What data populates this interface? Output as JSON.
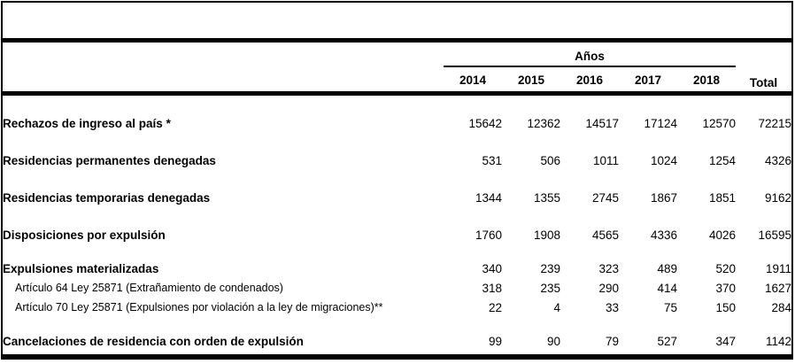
{
  "document": {
    "caption": "",
    "colors": {
      "border": "#000000",
      "text": "#000000",
      "background": "#ffffff"
    },
    "table": {
      "years_group_label": "Años",
      "columns": [
        "2014",
        "2015",
        "2016",
        "2017",
        "2018"
      ],
      "total_label": "Total",
      "rows": [
        {
          "label": "Rechazos de ingreso al país *",
          "level": 0,
          "values": [
            "15642",
            "12362",
            "14517",
            "17124",
            "12570"
          ],
          "total": "72215"
        },
        {
          "label": "Residencias permanentes denegadas",
          "level": 0,
          "values": [
            "531",
            "506",
            "1011",
            "1024",
            "1254"
          ],
          "total": "4326"
        },
        {
          "label": "Residencias temporarias denegadas",
          "level": 0,
          "values": [
            "1344",
            "1355",
            "2745",
            "1867",
            "1851"
          ],
          "total": "9162"
        },
        {
          "label": "Disposiciones por expulsión",
          "level": 0,
          "values": [
            "1760",
            "1908",
            "4565",
            "4336",
            "4026"
          ],
          "total": "16595"
        },
        {
          "label": "Expulsiones materializadas",
          "level": 0,
          "values": [
            "340",
            "239",
            "323",
            "489",
            "520"
          ],
          "total": "1911"
        },
        {
          "label": "Artículo 64 Ley 25871 (Extrañamiento de condenados)",
          "level": 1,
          "values": [
            "318",
            "235",
            "290",
            "414",
            "370"
          ],
          "total": "1627"
        },
        {
          "label": "Artículo 70 Ley 25871 (Expulsiones por violación a la ley de migraciones)**",
          "level": 1,
          "values": [
            "22",
            "4",
            "33",
            "75",
            "150"
          ],
          "total": "284"
        },
        {
          "label": "Cancelaciones de residencia con orden de expulsión",
          "level": 0,
          "values": [
            "99",
            "90",
            "79",
            "527",
            "347"
          ],
          "total": "1142"
        }
      ]
    }
  }
}
